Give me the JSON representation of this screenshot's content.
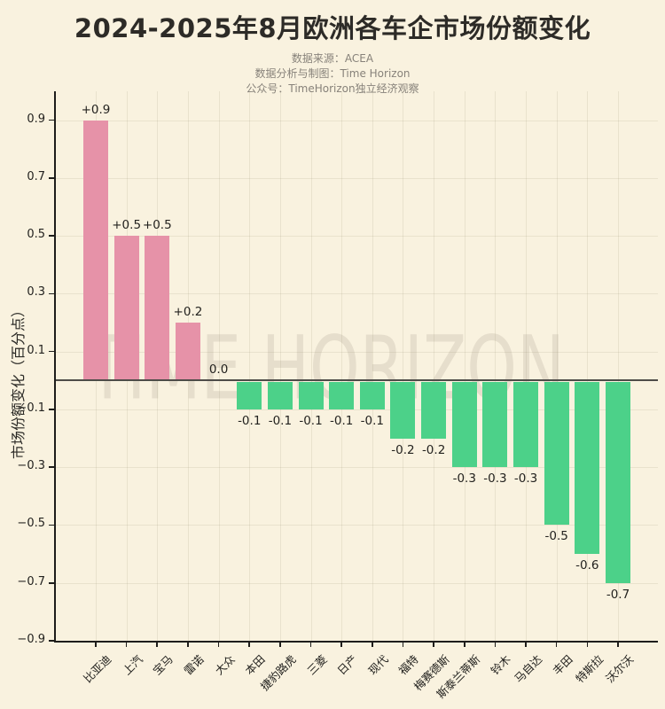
{
  "header": {
    "title": "2024-2025年8月欧洲各车企市场份额变化",
    "subtitle_lines": [
      "数据来源：ACEA",
      "数据分析与制图：Time Horizon",
      "公众号：TimeHorizon独立经济观察"
    ]
  },
  "watermark": "TIME HORIZON",
  "colors": {
    "background": "#f9f2df",
    "positive_bar": "#e692a8",
    "negative_bar": "#4cd189",
    "title_text": "#2d2b27",
    "subtitle_text": "#87827a",
    "axis": "#1e1d1b",
    "zero_line": "#4e4c48",
    "grid": "rgba(150,140,115,0.16)"
  },
  "chart_data": {
    "type": "bar",
    "title": "2024-2025年8月欧洲各车企市场份额变化",
    "xlabel": "",
    "ylabel": "市场份额变化（百分点）",
    "ylim": [
      -0.9,
      1.0
    ],
    "grid": true,
    "legend_position": "none",
    "yticks": [
      0.9,
      0.7,
      0.5,
      0.3,
      0.1,
      -0.1,
      -0.3,
      -0.5,
      -0.7,
      -0.9
    ],
    "ytick_labels": [
      "0.9",
      "0.7",
      "0.5",
      "0.3",
      "0.1",
      "−0.1",
      "−0.3",
      "−0.5",
      "−0.7",
      "−0.9"
    ],
    "categories": [
      "比亚迪",
      "上汽",
      "宝马",
      "雷诺",
      "大众",
      "本田",
      "捷豹路虎",
      "三菱",
      "日产",
      "现代",
      "福特",
      "梅赛德斯",
      "斯泰兰蒂斯",
      "铃木",
      "马自达",
      "丰田",
      "特斯拉",
      "沃尔沃"
    ],
    "values": [
      0.9,
      0.5,
      0.5,
      0.2,
      0.0,
      -0.1,
      -0.1,
      -0.1,
      -0.1,
      -0.1,
      -0.2,
      -0.2,
      -0.3,
      -0.3,
      -0.3,
      -0.5,
      -0.6,
      -0.7
    ],
    "value_labels": [
      "+0.9",
      "+0.5",
      "+0.5",
      "+0.2",
      "0.0",
      "-0.1",
      "-0.1",
      "-0.1",
      "-0.1",
      "-0.1",
      "-0.2",
      "-0.2",
      "-0.3",
      "-0.3",
      "-0.3",
      "-0.5",
      "-0.6",
      "-0.7"
    ]
  }
}
